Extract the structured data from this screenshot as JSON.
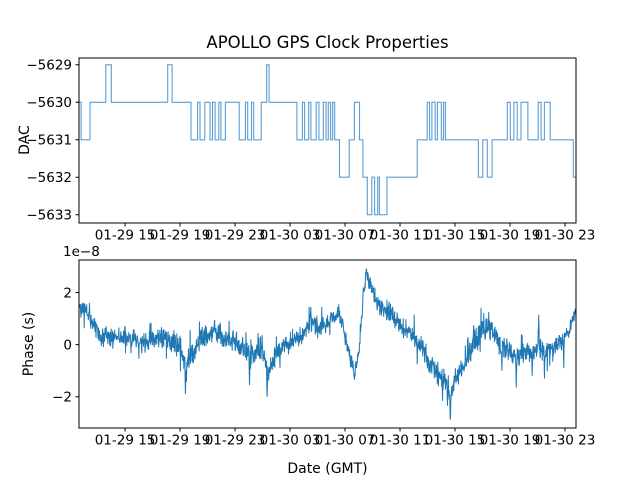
{
  "figure": {
    "background": "#ffffff",
    "spine_color": "#000000"
  },
  "chart_data": [
    {
      "id": "dac",
      "type": "step",
      "title": "APOLLO GPS Clock Properties",
      "ylabel": "DAC",
      "yticks": [
        -5629,
        -5630,
        -5631,
        -5632,
        -5633
      ],
      "ytick_labels": [
        "−5629",
        "−5630",
        "−5631",
        "−5632",
        "−5633"
      ],
      "ylim": [
        -5633.22,
        -5628.82
      ],
      "xlim_hours": [
        11.65,
        47.8
      ],
      "xticks_hours": [
        15,
        19,
        23,
        27,
        31,
        35,
        39,
        43,
        47
      ],
      "xtick_labels": [
        "01-29 15",
        "01-29 19",
        "01-29 23",
        "01-30 03",
        "01-30 07",
        "01-30 11",
        "01-30 15",
        "01-30 19",
        "01-30 23"
      ],
      "line_color": "#5b9ed6",
      "grid": false,
      "legend": null,
      "steps": [
        [
          11.65,
          -5630
        ],
        [
          11.8,
          -5631
        ],
        [
          12.45,
          -5630
        ],
        [
          13.6,
          -5629
        ],
        [
          14.0,
          -5630
        ],
        [
          18.1,
          -5629
        ],
        [
          18.42,
          -5630
        ],
        [
          19.8,
          -5631
        ],
        [
          20.28,
          -5630
        ],
        [
          20.45,
          -5631
        ],
        [
          20.8,
          -5630
        ],
        [
          21.18,
          -5631
        ],
        [
          21.36,
          -5630
        ],
        [
          21.55,
          -5631
        ],
        [
          21.82,
          -5630
        ],
        [
          21.97,
          -5631
        ],
        [
          22.3,
          -5630
        ],
        [
          23.3,
          -5631
        ],
        [
          23.75,
          -5630
        ],
        [
          23.92,
          -5631
        ],
        [
          24.2,
          -5630
        ],
        [
          24.36,
          -5631
        ],
        [
          24.9,
          -5630
        ],
        [
          25.3,
          -5629
        ],
        [
          25.48,
          -5630
        ],
        [
          27.5,
          -5631
        ],
        [
          27.9,
          -5630
        ],
        [
          28.06,
          -5631
        ],
        [
          28.36,
          -5630
        ],
        [
          28.52,
          -5631
        ],
        [
          28.9,
          -5630
        ],
        [
          29.1,
          -5631
        ],
        [
          29.42,
          -5630
        ],
        [
          29.62,
          -5631
        ],
        [
          29.78,
          -5630
        ],
        [
          29.95,
          -5631
        ],
        [
          30.1,
          -5630
        ],
        [
          30.25,
          -5631
        ],
        [
          30.6,
          -5632
        ],
        [
          31.3,
          -5631
        ],
        [
          31.68,
          -5630
        ],
        [
          32.05,
          -5631
        ],
        [
          32.3,
          -5632
        ],
        [
          32.62,
          -5633
        ],
        [
          32.95,
          -5632
        ],
        [
          33.15,
          -5633
        ],
        [
          33.38,
          -5632
        ],
        [
          33.5,
          -5633
        ],
        [
          34.05,
          -5632
        ],
        [
          36.25,
          -5631
        ],
        [
          36.98,
          -5630
        ],
        [
          37.15,
          -5631
        ],
        [
          37.32,
          -5630
        ],
        [
          37.56,
          -5631
        ],
        [
          37.72,
          -5630
        ],
        [
          38.0,
          -5631
        ],
        [
          38.16,
          -5630
        ],
        [
          38.3,
          -5631
        ],
        [
          40.7,
          -5632
        ],
        [
          41.02,
          -5631
        ],
        [
          41.35,
          -5632
        ],
        [
          41.7,
          -5631
        ],
        [
          42.8,
          -5630
        ],
        [
          43.02,
          -5631
        ],
        [
          43.28,
          -5630
        ],
        [
          43.52,
          -5631
        ],
        [
          43.8,
          -5630
        ],
        [
          44.3,
          -5631
        ],
        [
          45.05,
          -5630
        ],
        [
          45.26,
          -5631
        ],
        [
          45.5,
          -5630
        ],
        [
          45.92,
          -5631
        ],
        [
          47.6,
          -5632
        ]
      ]
    },
    {
      "id": "phase",
      "type": "line",
      "ylabel": "Phase (s)",
      "xlabel": "Date (GMT)",
      "offset_text": "1e−8",
      "units": "1e-8 seconds",
      "yticks": [
        -2,
        0,
        2
      ],
      "ytick_labels": [
        "−2",
        "0",
        "2"
      ],
      "ylim": [
        -3.2,
        3.25
      ],
      "xlim_hours": [
        11.65,
        47.8
      ],
      "xticks_hours": [
        15,
        19,
        23,
        27,
        31,
        35,
        39,
        43,
        47
      ],
      "xtick_labels": [
        "01-29 15",
        "01-29 19",
        "01-29 23",
        "01-30 03",
        "01-30 07",
        "01-30 11",
        "01-30 15",
        "01-30 19",
        "01-30 23"
      ],
      "line_color": "#1f77b4",
      "grid": false,
      "legend": null,
      "noise_seed": 42,
      "sample_step_hours": 0.02,
      "trend": [
        [
          11.65,
          1.55
        ],
        [
          12.1,
          1.3
        ],
        [
          12.7,
          0.75
        ],
        [
          13.3,
          0.3
        ],
        [
          14.0,
          0.25
        ],
        [
          14.8,
          0.3
        ],
        [
          15.5,
          0.2
        ],
        [
          16.2,
          0.05
        ],
        [
          17.0,
          0.15
        ],
        [
          17.7,
          0.3
        ],
        [
          18.5,
          0.1
        ],
        [
          19.1,
          -0.2
        ],
        [
          19.4,
          -0.85
        ],
        [
          19.8,
          -0.35
        ],
        [
          20.5,
          0.15
        ],
        [
          21.2,
          0.45
        ],
        [
          21.6,
          0.55
        ],
        [
          22.2,
          0.25
        ],
        [
          23.0,
          0.1
        ],
        [
          23.7,
          -0.15
        ],
        [
          24.2,
          -0.5
        ],
        [
          24.8,
          -0.15
        ],
        [
          25.1,
          -0.3
        ],
        [
          25.35,
          -1.25
        ],
        [
          25.8,
          -0.55
        ],
        [
          26.4,
          -0.05
        ],
        [
          27.2,
          0.15
        ],
        [
          28.0,
          0.45
        ],
        [
          28.5,
          0.95
        ],
        [
          29.0,
          0.65
        ],
        [
          29.8,
          0.8
        ],
        [
          30.5,
          1.15
        ],
        [
          30.9,
          0.6
        ],
        [
          31.3,
          -0.3
        ],
        [
          31.7,
          -1.1
        ],
        [
          32.0,
          -0.3
        ],
        [
          32.3,
          1.7
        ],
        [
          32.55,
          2.7
        ],
        [
          32.9,
          2.2
        ],
        [
          33.4,
          1.5
        ],
        [
          34.0,
          1.3
        ],
        [
          34.4,
          1.15
        ],
        [
          35.0,
          0.7
        ],
        [
          35.6,
          0.5
        ],
        [
          36.1,
          0.3
        ],
        [
          36.7,
          -0.15
        ],
        [
          37.3,
          -0.85
        ],
        [
          37.9,
          -1.2
        ],
        [
          38.4,
          -1.5
        ],
        [
          38.65,
          -2.1
        ],
        [
          39.0,
          -1.3
        ],
        [
          39.6,
          -0.9
        ],
        [
          40.0,
          -0.4
        ],
        [
          40.4,
          0.1
        ],
        [
          41.0,
          0.5
        ],
        [
          41.3,
          0.75
        ],
        [
          41.8,
          0.45
        ],
        [
          42.4,
          -0.1
        ],
        [
          43.0,
          -0.25
        ],
        [
          43.45,
          -0.5
        ],
        [
          44.0,
          -0.2
        ],
        [
          44.6,
          -0.35
        ],
        [
          45.1,
          0.0
        ],
        [
          45.5,
          -0.3
        ],
        [
          46.2,
          -0.1
        ],
        [
          46.8,
          0.1
        ],
        [
          47.3,
          0.55
        ],
        [
          47.8,
          1.35
        ]
      ],
      "noise_amp": [
        [
          11.65,
          0.22
        ],
        [
          13.0,
          0.28
        ],
        [
          19.0,
          0.32
        ],
        [
          24.0,
          0.3
        ],
        [
          28.0,
          0.28
        ],
        [
          32.5,
          0.25
        ],
        [
          35.0,
          0.28
        ],
        [
          38.5,
          0.32
        ],
        [
          42.0,
          0.32
        ],
        [
          45.0,
          0.3
        ],
        [
          47.8,
          0.18
        ]
      ],
      "spikes": [
        [
          19.4,
          -1.9
        ],
        [
          21.5,
          0.95
        ],
        [
          24.05,
          -1.55
        ],
        [
          25.32,
          -2.0
        ],
        [
          28.5,
          1.45
        ],
        [
          30.55,
          1.55
        ],
        [
          31.7,
          -1.35
        ],
        [
          32.55,
          2.92
        ],
        [
          38.45,
          -2.35
        ],
        [
          38.66,
          -2.88
        ],
        [
          40.35,
          0.75
        ],
        [
          41.25,
          1.0
        ],
        [
          42.4,
          -1.0
        ],
        [
          43.45,
          -1.65
        ],
        [
          44.6,
          -1.2
        ],
        [
          45.08,
          1.15
        ],
        [
          45.5,
          -1.3
        ],
        [
          46.9,
          -0.9
        ]
      ]
    }
  ]
}
